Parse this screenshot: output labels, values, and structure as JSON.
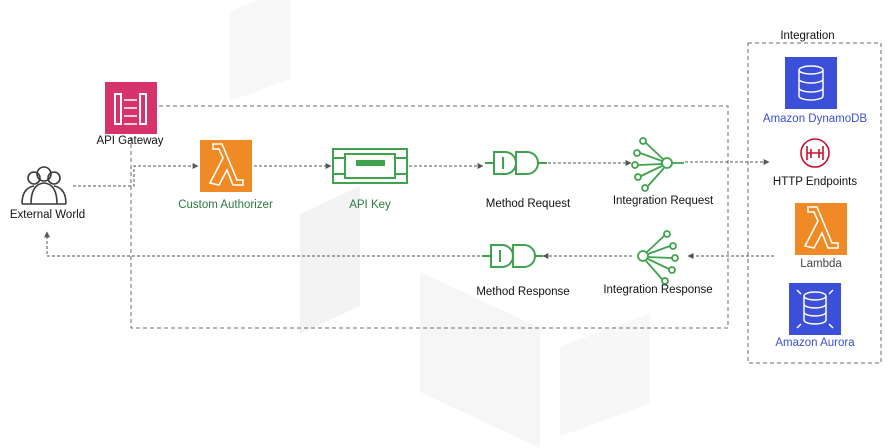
{
  "diagram": {
    "nodes": {
      "api_gateway": "API Gateway",
      "external_world": "External World",
      "custom_authorizer": "Custom Authorizer",
      "api_key": "API Key",
      "method_request": "Method Request",
      "integration_request": "Integration Request",
      "method_response": "Method Response",
      "integration_response": "Integration Response",
      "integration_group": "Integration",
      "dynamodb": "Amazon DynamoDB",
      "http_endpoints": "HTTP Endpoints",
      "lambda": "Lambda",
      "aurora": "Amazon Aurora"
    },
    "colors": {
      "api_gateway": "#d6336c",
      "lambda": "#f08a24",
      "green": "#3fa34d",
      "database": "#3b4fd8",
      "http": "#c8102e",
      "line": "#555555"
    },
    "icons": {
      "external_world": "users-icon",
      "api_gateway": "api-gateway-icon",
      "custom_authorizer": "lambda-icon",
      "api_key": "api-key-icon",
      "method_request": "plug-icon",
      "integration_request": "integration-icon",
      "method_response": "plug-icon",
      "integration_response": "integration-icon",
      "dynamodb": "dynamodb-icon",
      "http_endpoints": "http-endpoint-icon",
      "lambda": "lambda-icon",
      "aurora": "aurora-icon"
    }
  }
}
